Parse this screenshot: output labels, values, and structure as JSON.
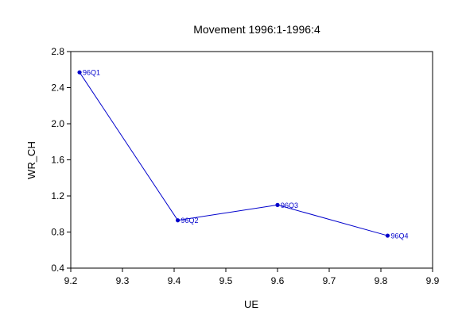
{
  "chart_data": {
    "type": "line",
    "title": "Movement 1996:1-1996:4",
    "xlabel": "UE",
    "ylabel": "WR_CH",
    "xlim": [
      9.2,
      9.9
    ],
    "ylim": [
      0.4,
      2.8
    ],
    "xticks": [
      "9.2",
      "9.3",
      "9.4",
      "9.5",
      "9.6",
      "9.7",
      "9.8",
      "9.9"
    ],
    "yticks": [
      "0.4",
      "0.8",
      "1.2",
      "1.6",
      "2.0",
      "2.4",
      "2.8"
    ],
    "grid": false,
    "series": [
      {
        "points": [
          {
            "label": "96Q1",
            "x": 9.217,
            "y": 2.57
          },
          {
            "label": "96Q2",
            "x": 9.407,
            "y": 0.93
          },
          {
            "label": "96Q3",
            "x": 9.6,
            "y": 1.1
          },
          {
            "label": "96Q4",
            "x": 9.813,
            "y": 0.76
          }
        ]
      }
    ],
    "line_color": "#0000cc"
  }
}
